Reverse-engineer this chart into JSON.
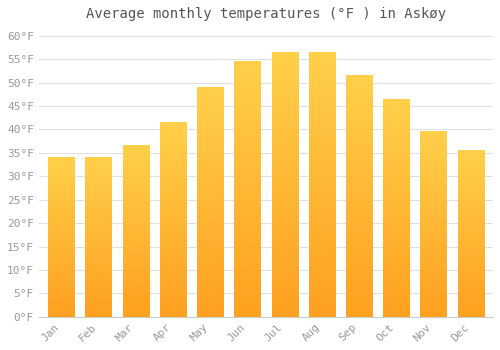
{
  "title": "Average monthly temperatures (°F ) in Askøy",
  "months": [
    "Jan",
    "Feb",
    "Mar",
    "Apr",
    "May",
    "Jun",
    "Jul",
    "Aug",
    "Sep",
    "Oct",
    "Nov",
    "Dec"
  ],
  "values": [
    34,
    34,
    36.5,
    41.5,
    49,
    54.5,
    56.5,
    56.5,
    51.5,
    46.5,
    39.5,
    35.5
  ],
  "bar_color_top": "#FFD04A",
  "bar_color_bottom": "#FFA020",
  "background_color": "#ffffff",
  "grid_color": "#e0e0e0",
  "text_color": "#999999",
  "title_color": "#555555",
  "ylim": [
    0,
    62
  ],
  "yticks": [
    0,
    5,
    10,
    15,
    20,
    25,
    30,
    35,
    40,
    45,
    50,
    55,
    60
  ],
  "ytick_labels": [
    "0°F",
    "5°F",
    "10°F",
    "15°F",
    "20°F",
    "25°F",
    "30°F",
    "35°F",
    "40°F",
    "45°F",
    "50°F",
    "55°F",
    "60°F"
  ],
  "title_fontsize": 10,
  "tick_fontsize": 8,
  "font_family": "monospace",
  "bar_width": 0.7
}
